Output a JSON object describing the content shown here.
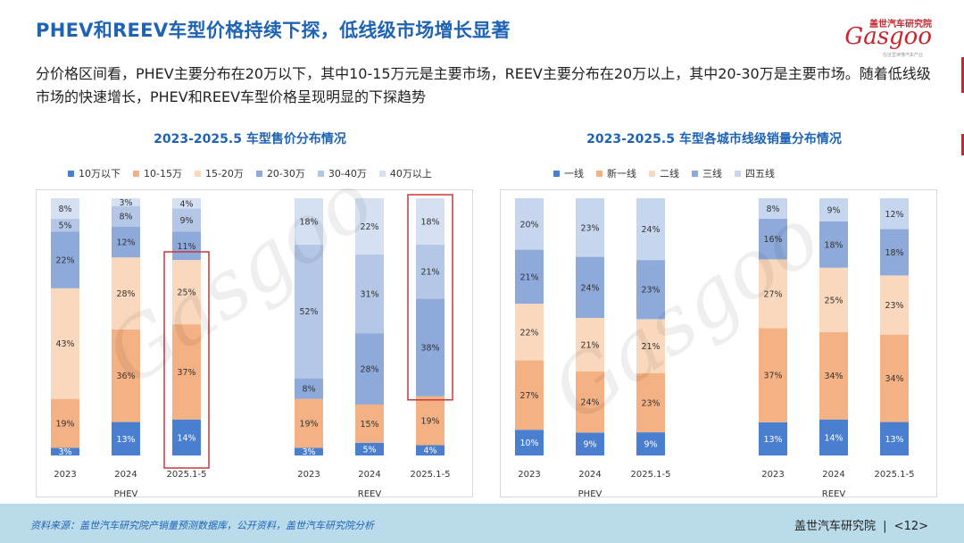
{
  "header": {
    "title": "PHEV和REEV车型价格持续下探，低线级市场增长显著",
    "subtitle": "分价格区间看，PHEV主要分布在20万以下，其中10-15万元是主要市场，REEV主要分布在20万以上，其中20-30万是主要市场。随着低线级市场的快速增长，PHEV和REEV车型价格呈现明显的下探趋势"
  },
  "logo": {
    "cn": "盖世汽车研究院",
    "en": "Gasgoo",
    "tagline": "在这里读懂汽车产业"
  },
  "watermark": {
    "text": "Gasgoo",
    "caption": "在这里读懂汽车产业"
  },
  "colors": {
    "accent": "#1f63b5",
    "brand_red": "#c8262e",
    "footer_bg": "#b9dbea"
  },
  "chart_data": [
    {
      "type": "bar",
      "stacked": true,
      "percent": true,
      "title": "2023-2025.5 车型售价分布情况",
      "series_names": [
        "10万以下",
        "10-15万",
        "15-20万",
        "20-30万",
        "30-40万",
        "40万以上"
      ],
      "colors": [
        "#4a7fcf",
        "#f4b183",
        "#fad8bd",
        "#8eaadb",
        "#b4c7e7",
        "#d5e1f3"
      ],
      "groups": [
        {
          "name": "PHEV",
          "categories": [
            "2023",
            "2024",
            "2025.1-5"
          ],
          "values": [
            [
              3,
              19,
              43,
              22,
              5,
              8
            ],
            [
              13,
              36,
              28,
              12,
              8,
              3
            ],
            [
              14,
              37,
              25,
              11,
              9,
              4
            ]
          ],
          "highlight_index": 2
        },
        {
          "name": "REEV",
          "categories": [
            "2023",
            "2024",
            "2025.1-5"
          ],
          "values": [
            [
              3,
              19,
              0,
              8,
              52,
              18
            ],
            [
              5,
              15,
              0,
              28,
              31,
              22
            ],
            [
              4,
              19,
              0,
              38,
              21,
              18
            ]
          ],
          "highlight_index": 2,
          "highlight_from_series": 3
        }
      ]
    },
    {
      "type": "bar",
      "stacked": true,
      "percent": true,
      "title": "2023-2025.5 车型各城市线级销量分布情况",
      "series_names": [
        "一线",
        "新一线",
        "二线",
        "三线",
        "四五线"
      ],
      "colors": [
        "#4a7fcf",
        "#f4b183",
        "#fad8bd",
        "#8eaadb",
        "#c6d6ee"
      ],
      "groups": [
        {
          "name": "PHEV",
          "categories": [
            "2023",
            "2024",
            "2025.1-5"
          ],
          "values": [
            [
              10,
              27,
              22,
              21,
              20
            ],
            [
              9,
              24,
              21,
              24,
              23
            ],
            [
              9,
              23,
              21,
              23,
              24
            ]
          ]
        },
        {
          "name": "REEV",
          "categories": [
            "2023",
            "2024",
            "2025.1-5"
          ],
          "values": [
            [
              13,
              37,
              27,
              16,
              8
            ],
            [
              14,
              34,
              25,
              18,
              9
            ],
            [
              13,
              34,
              23,
              18,
              12
            ]
          ]
        }
      ]
    }
  ],
  "footer": {
    "source": "资料来源：盖世汽车研究院产销量预测数据库，公开资料，盖世汽车研究院分析",
    "brand": "盖世汽车研究院",
    "page": "<12>"
  }
}
